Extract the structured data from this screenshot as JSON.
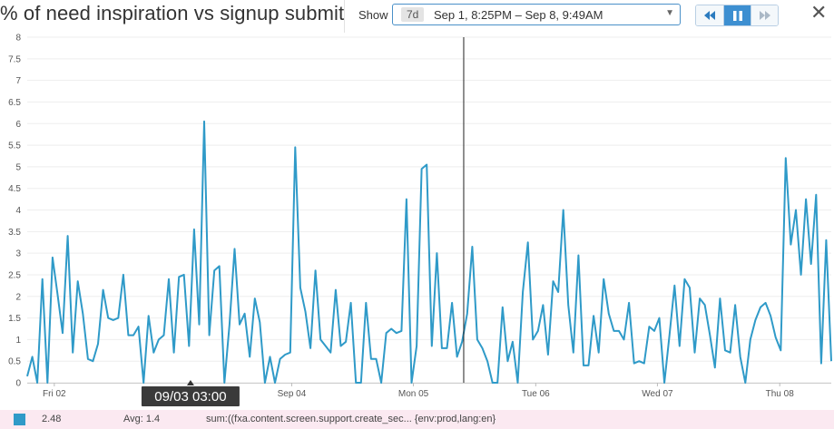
{
  "header": {
    "title": "% of need inspiration vs signup submit",
    "show_label": "Show",
    "range_badge": "7d",
    "range_text": "Sep 1, 8:25PM – Sep 8, 9:49AM",
    "caret": "▼",
    "close": "✕"
  },
  "playback": {
    "rewind_icon": "rewind-icon",
    "pause_icon": "pause-icon",
    "forward_icon": "fast-forward-icon"
  },
  "colors": {
    "series": "#2f9ac8",
    "accent": "#3d8fd1",
    "footer_bg": "#fbe9f1"
  },
  "chart_data": {
    "type": "line",
    "title": "% of need inspiration vs signup submit",
    "ylim": [
      0,
      8
    ],
    "y_ticks": [
      "0",
      "0.5",
      "1",
      "1.5",
      "2",
      "2.5",
      "3",
      "3.5",
      "4",
      "4.5",
      "5",
      "5.5",
      "6",
      "6.5",
      "7",
      "7.5",
      "8"
    ],
    "x_ticks": [
      {
        "label": "Fri 02",
        "t": 0.083
      },
      {
        "label": "Sep 04",
        "t": 1.995
      },
      {
        "label": "Mon 05",
        "t": 2.975
      },
      {
        "label": "Tue 06",
        "t": 3.96
      },
      {
        "label": "Wed 07",
        "t": 4.94
      },
      {
        "label": "Thu 08",
        "t": 5.925
      }
    ],
    "x_unit_note": "days since Sep 1 00:00",
    "x_start": -0.135,
    "x_end": 6.34,
    "cursor": {
      "label": "09/03 03:00",
      "t": 1.18
    },
    "marker": {
      "t": 3.38
    },
    "series": [
      {
        "name": "sum:((fxa.content.screen.support.create_sec... {env:prod,lang:en}",
        "values": [
          0.15,
          0.6,
          0.0,
          2.4,
          0.0,
          2.9,
          2.05,
          1.15,
          3.4,
          0.7,
          2.35,
          1.6,
          0.55,
          0.5,
          0.9,
          2.15,
          1.5,
          1.45,
          1.5,
          2.5,
          1.1,
          1.1,
          1.3,
          0.0,
          1.55,
          0.7,
          1.0,
          1.1,
          2.4,
          0.7,
          2.45,
          2.5,
          0.85,
          3.55,
          1.35,
          6.05,
          1.1,
          2.6,
          2.7,
          0.0,
          1.35,
          3.1,
          1.35,
          1.6,
          0.6,
          1.95,
          1.4,
          0.0,
          0.6,
          0.0,
          0.55,
          0.65,
          0.7,
          5.45,
          2.2,
          1.65,
          0.8,
          2.6,
          1.0,
          0.85,
          0.7,
          2.15,
          0.85,
          0.95,
          1.85,
          0.0,
          0.0,
          1.85,
          0.55,
          0.55,
          0.0,
          1.15,
          1.25,
          1.15,
          1.2,
          4.25,
          0.0,
          0.85,
          4.95,
          5.05,
          0.85,
          3.0,
          0.8,
          0.8,
          1.85,
          0.6,
          0.95,
          1.6,
          3.15,
          1.0,
          0.8,
          0.5,
          0.0,
          0.0,
          1.75,
          0.5,
          0.95,
          0.0,
          2.1,
          3.25,
          1.0,
          1.2,
          1.8,
          0.65,
          2.35,
          2.1,
          4.0,
          1.8,
          0.7,
          2.95,
          0.4,
          0.4,
          1.55,
          0.7,
          2.4,
          1.6,
          1.2,
          1.2,
          1.0,
          1.85,
          0.45,
          0.5,
          0.45,
          1.3,
          1.2,
          1.5,
          0.0,
          1.1,
          2.25,
          0.85,
          2.4,
          2.2,
          0.7,
          1.95,
          1.8,
          1.1,
          0.35,
          1.95,
          0.75,
          0.7,
          1.8,
          0.6,
          0.0,
          1.0,
          1.45,
          1.75,
          1.85,
          1.55,
          1.05,
          0.75,
          5.2,
          3.2,
          4.0,
          2.5,
          4.25,
          2.75,
          4.35,
          0.45,
          3.3,
          0.5
        ]
      }
    ],
    "legend_value": "2.48",
    "legend_avg": "Avg: 1.4"
  }
}
